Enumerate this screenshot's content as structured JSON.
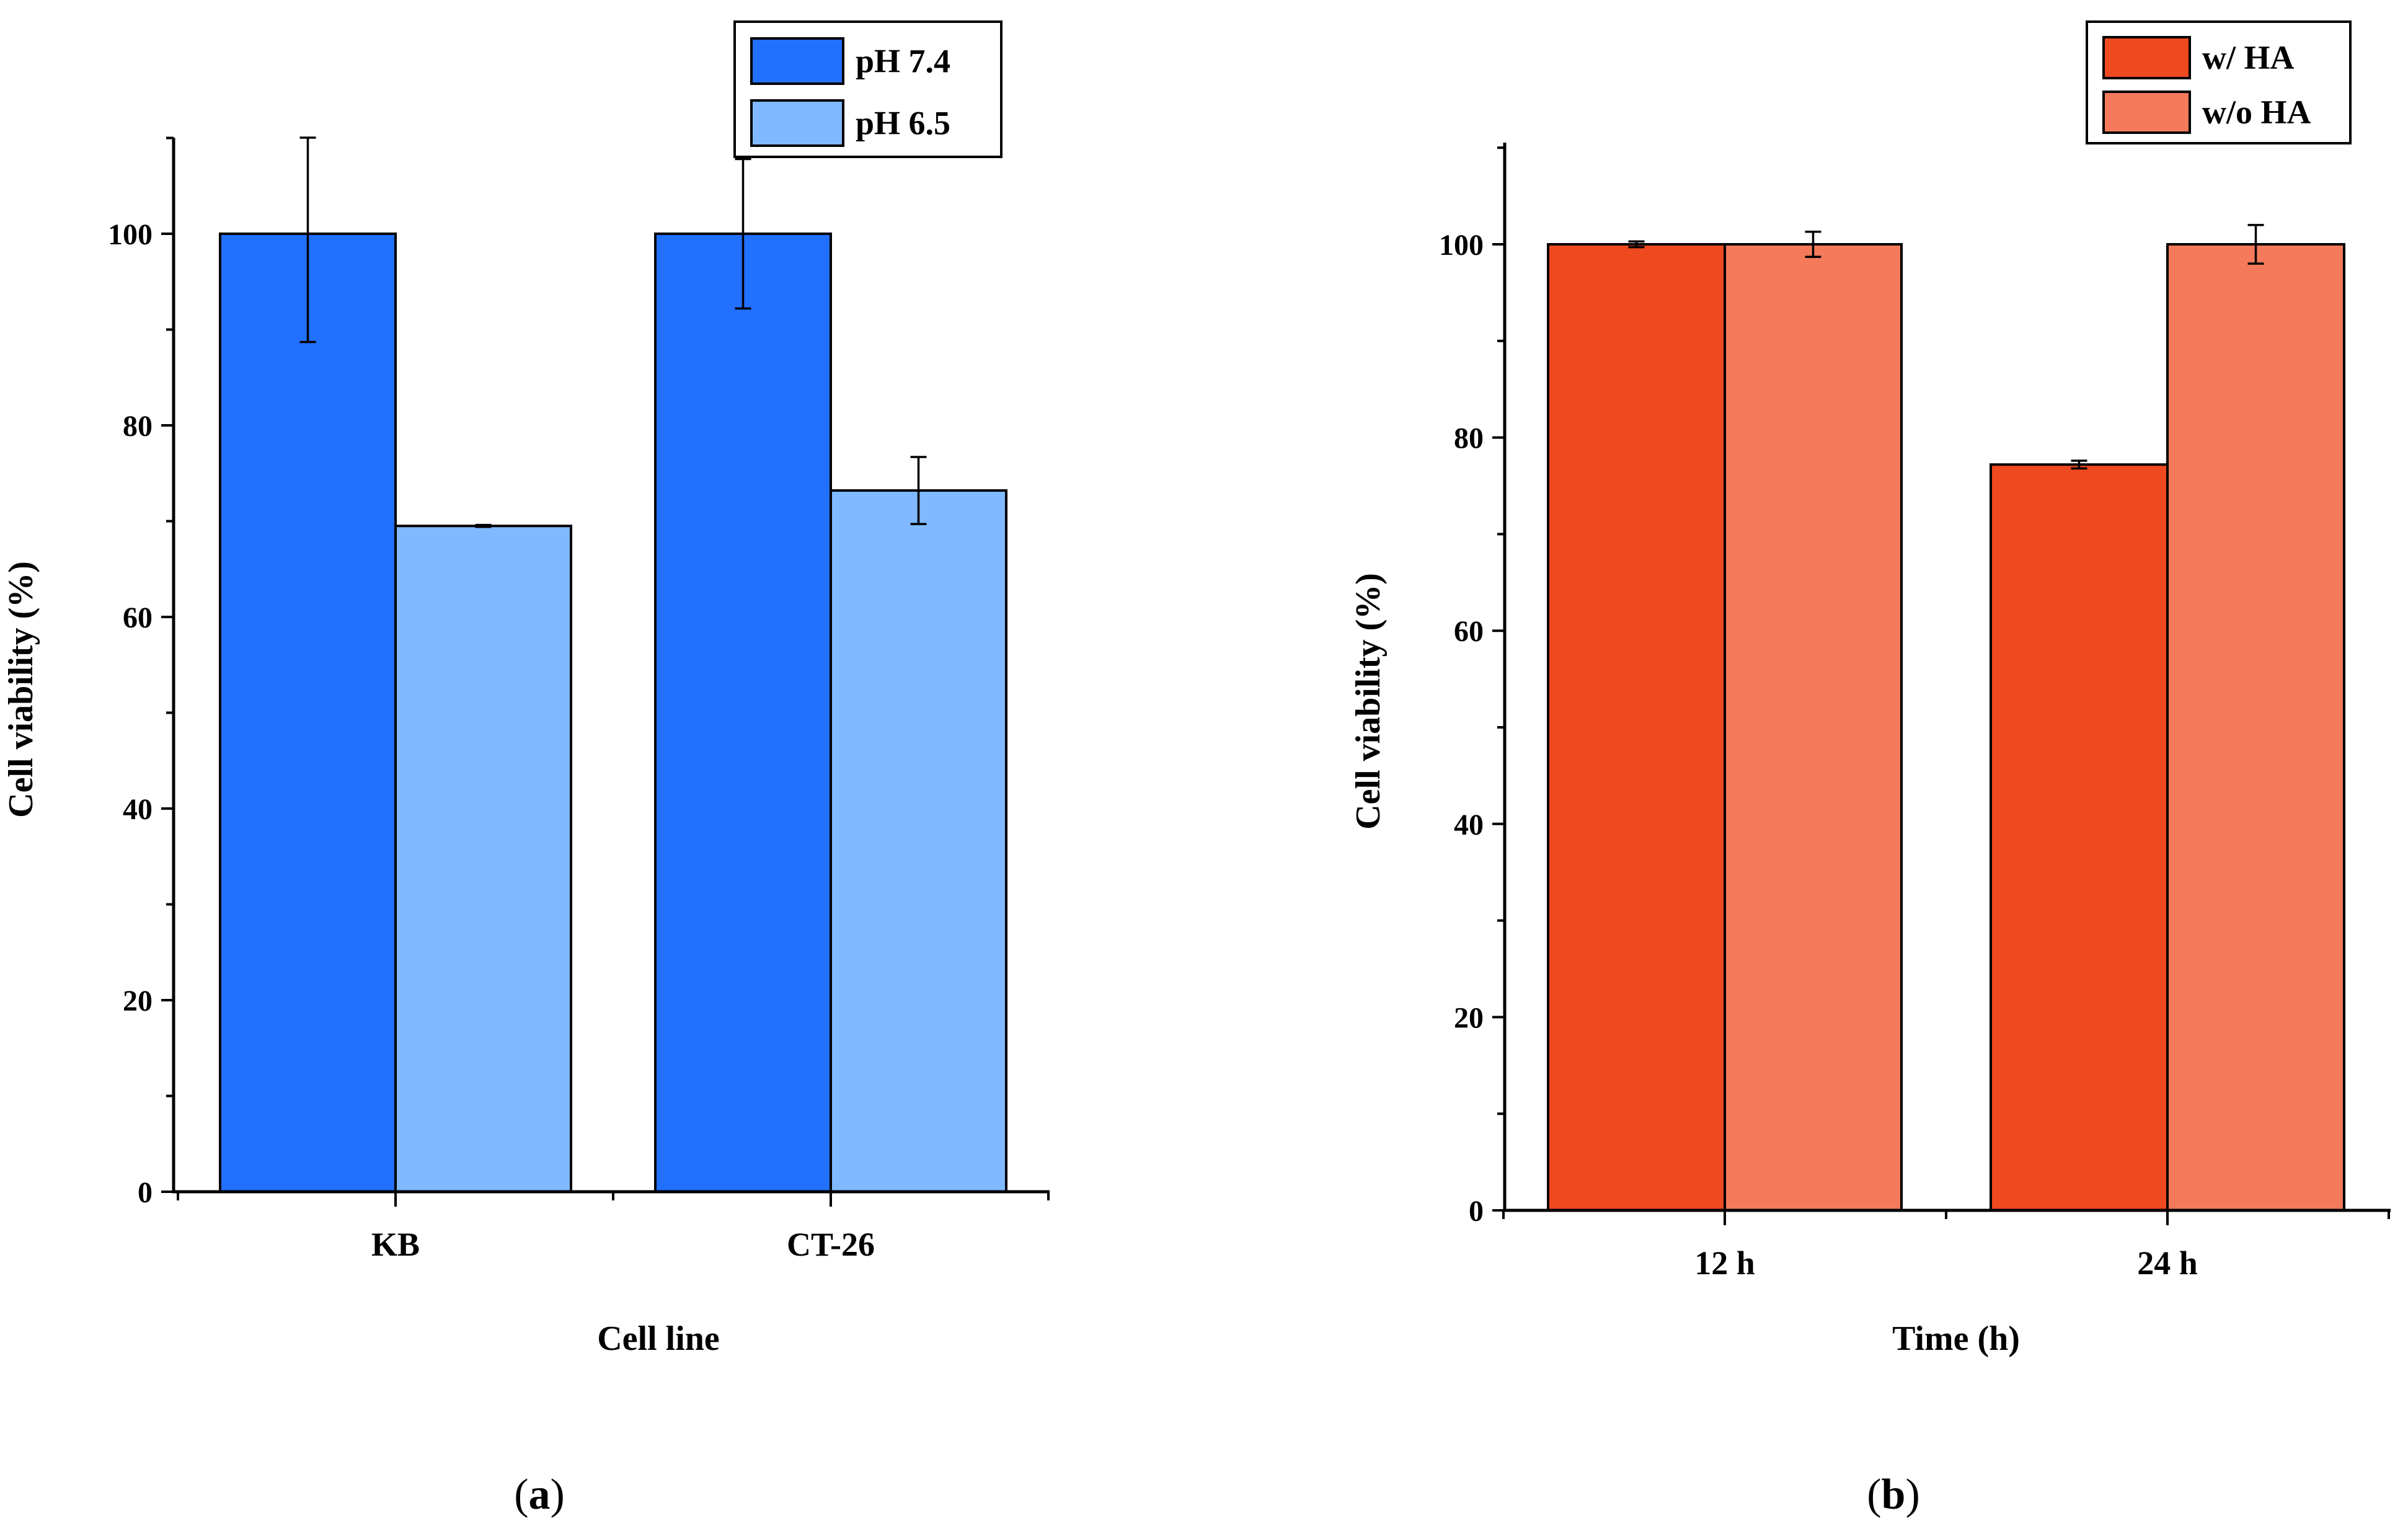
{
  "chart_data": [
    {
      "type": "bar",
      "panel_label": "a",
      "title": "",
      "xlabel": "Cell line",
      "ylabel": "Cell viability (%)",
      "ylim": [
        0,
        110
      ],
      "yticks": [
        "0",
        "20",
        "40",
        "60",
        "80",
        "100"
      ],
      "categories": [
        "KB",
        "CT-26"
      ],
      "series": [
        {
          "name": "pH 7.4",
          "color": "#2270ff",
          "values": [
            100,
            100
          ],
          "errors": [
            11.3,
            7.8
          ]
        },
        {
          "name": "pH 6.5",
          "color": "#80b9ff",
          "values": [
            69.5,
            73.2
          ],
          "errors": [
            0.1,
            3.5
          ]
        }
      ],
      "legend_position": "top-right",
      "grid": false
    },
    {
      "type": "bar",
      "panel_label": "b",
      "title": "",
      "xlabel": "Time (h)",
      "ylabel": "Cell viability (%)",
      "ylim": [
        0,
        110
      ],
      "yticks": [
        "0",
        "20",
        "40",
        "60",
        "80",
        "100"
      ],
      "categories": [
        "12 h",
        "24 h"
      ],
      "series": [
        {
          "name": "w/ HA",
          "color": "#ef4920",
          "values": [
            100,
            77.2
          ],
          "errors": [
            0.3,
            0.4
          ]
        },
        {
          "name": "w/o HA",
          "color": "#f47a5b",
          "values": [
            100,
            100
          ],
          "errors": [
            1.3,
            2.0
          ]
        }
      ],
      "legend_position": "top-right",
      "grid": false
    }
  ]
}
